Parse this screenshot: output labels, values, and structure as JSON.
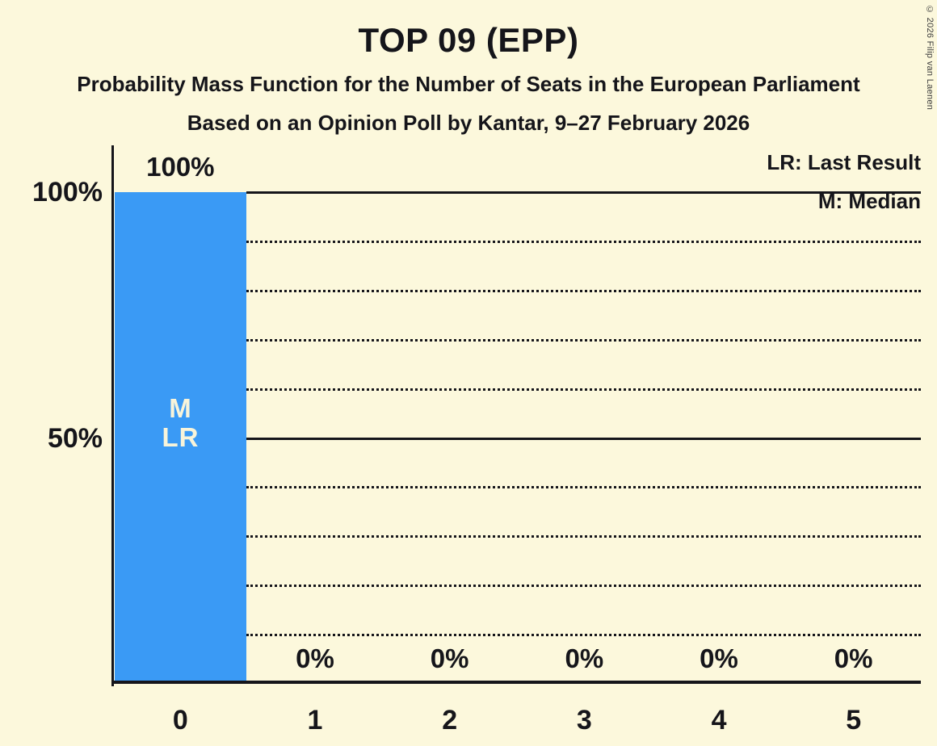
{
  "header": {
    "title": "TOP 09 (EPP)",
    "subtitle": "Probability Mass Function for the Number of Seats in the European Parliament",
    "poll_line": "Based on an Opinion Poll by Kantar, 9–27 February 2026"
  },
  "copyright": "© 2026 Filip van Laenen",
  "legend": {
    "last_result": "LR: Last Result",
    "median": "M: Median"
  },
  "colors": {
    "background": "#fcf8dc",
    "bar": "#3a9af5",
    "text": "#15151a",
    "bar_text": "#f8f4da"
  },
  "chart_data": {
    "type": "bar",
    "title": "TOP 09 (EPP)",
    "subtitle": "Probability Mass Function for the Number of Seats in the European Parliament",
    "source_line": "Based on an Opinion Poll by Kantar, 9–27 February 2026",
    "categories": [
      "0",
      "1",
      "2",
      "3",
      "4",
      "5"
    ],
    "values": [
      100,
      0,
      0,
      0,
      0,
      0
    ],
    "bar_labels": [
      "100%",
      "0%",
      "0%",
      "0%",
      "0%",
      "0%"
    ],
    "ylim": [
      0,
      100
    ],
    "ytick_labels": {
      "p100": "100%",
      "p50": "50%"
    },
    "gridline_interval_pct": 10,
    "solid_line_levels_pct": [
      100,
      50
    ],
    "legend_entries": [
      "LR: Last Result",
      "M: Median"
    ],
    "annotations": {
      "median": "M",
      "last_result": "LR",
      "annotated_category": "0"
    },
    "bar_color": "#3a9af5",
    "grid": "dotted-horizontal",
    "legend_position": "top-right"
  }
}
